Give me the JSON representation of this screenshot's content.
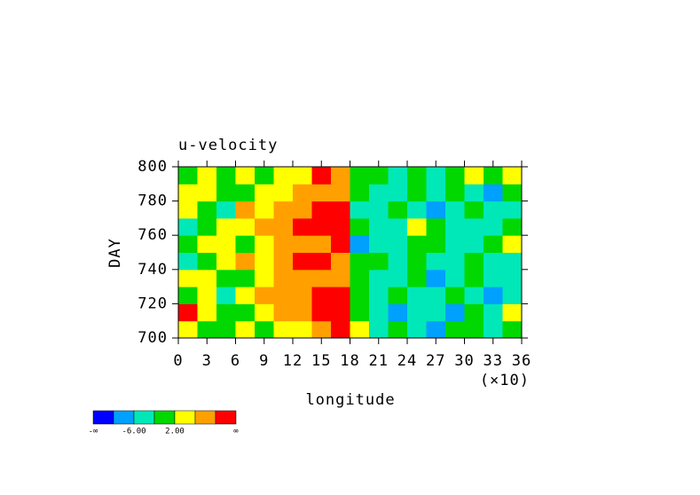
{
  "chart_data": {
    "type": "heatmap",
    "title": "u-velocity",
    "x_label": "longitude",
    "x_multiplier": "(×10)",
    "y_label": "DAY",
    "x": [
      1,
      3,
      5,
      7,
      9,
      11,
      13,
      15,
      17,
      19,
      21,
      23,
      25,
      27,
      29,
      31,
      33,
      35
    ],
    "y": [
      705,
      715,
      725,
      735,
      745,
      755,
      765,
      775,
      785,
      795
    ],
    "values": [
      [
        4,
        0,
        0,
        3,
        0,
        4,
        5,
        8,
        12,
        4,
        -4,
        0,
        -4,
        -8,
        -2,
        0,
        -4,
        0
      ],
      [
        12,
        4,
        0,
        0,
        4,
        6,
        8,
        12,
        14,
        0,
        -4,
        -8,
        -4,
        -4,
        -8,
        -2,
        -4,
        4
      ],
      [
        0,
        4,
        -4,
        4,
        8,
        6,
        8,
        14,
        14,
        0,
        -4,
        0,
        -4,
        -4,
        0,
        -4,
        -8,
        -4
      ],
      [
        4,
        4,
        0,
        0,
        4,
        8,
        6,
        8,
        6,
        0,
        -4,
        -4,
        0,
        -8,
        -4,
        0,
        -4,
        -4
      ],
      [
        -4,
        0,
        4,
        8,
        4,
        8,
        14,
        14,
        6,
        -2,
        0,
        -4,
        0,
        -4,
        -4,
        0,
        -4,
        -4
      ],
      [
        0,
        4,
        4,
        -2,
        4,
        8,
        6,
        8,
        14,
        -8,
        -4,
        -4,
        0,
        0,
        -4,
        -4,
        0,
        4
      ],
      [
        -4,
        0,
        4,
        4,
        8,
        8,
        14,
        14,
        12,
        0,
        -4,
        -4,
        4,
        0,
        -4,
        -4,
        -4,
        0
      ],
      [
        4,
        0,
        -4,
        8,
        4,
        8,
        6,
        14,
        12,
        -4,
        -4,
        0,
        -4,
        -8,
        -4,
        0,
        -4,
        -4
      ],
      [
        4,
        4,
        0,
        0,
        4,
        4,
        8,
        6,
        8,
        0,
        -4,
        -4,
        0,
        -4,
        0,
        -4,
        -8,
        0
      ],
      [
        0,
        4,
        0,
        4,
        0,
        4,
        4,
        12,
        6,
        0,
        0,
        -4,
        0,
        -4,
        0,
        4,
        0,
        4
      ]
    ],
    "xlim": [
      0,
      36
    ],
    "xticks": [
      0,
      3,
      6,
      9,
      12,
      15,
      18,
      21,
      24,
      27,
      30,
      33,
      36
    ],
    "ylim": [
      700,
      800
    ],
    "yticks": [
      700,
      720,
      740,
      760,
      780,
      800
    ],
    "levels": [
      -10,
      -6,
      -2,
      2,
      6,
      10
    ],
    "colors": [
      "#0000ff",
      "#00a0ff",
      "#00e8b8",
      "#00d800",
      "#ffff00",
      "#ffa000",
      "#ff0000"
    ],
    "colorbar_ends": [
      "-∞",
      "∞"
    ],
    "colorbar_labels": [
      {
        "value": -6,
        "label": "-6.00"
      },
      {
        "value": 2,
        "label": "2.00"
      }
    ]
  }
}
